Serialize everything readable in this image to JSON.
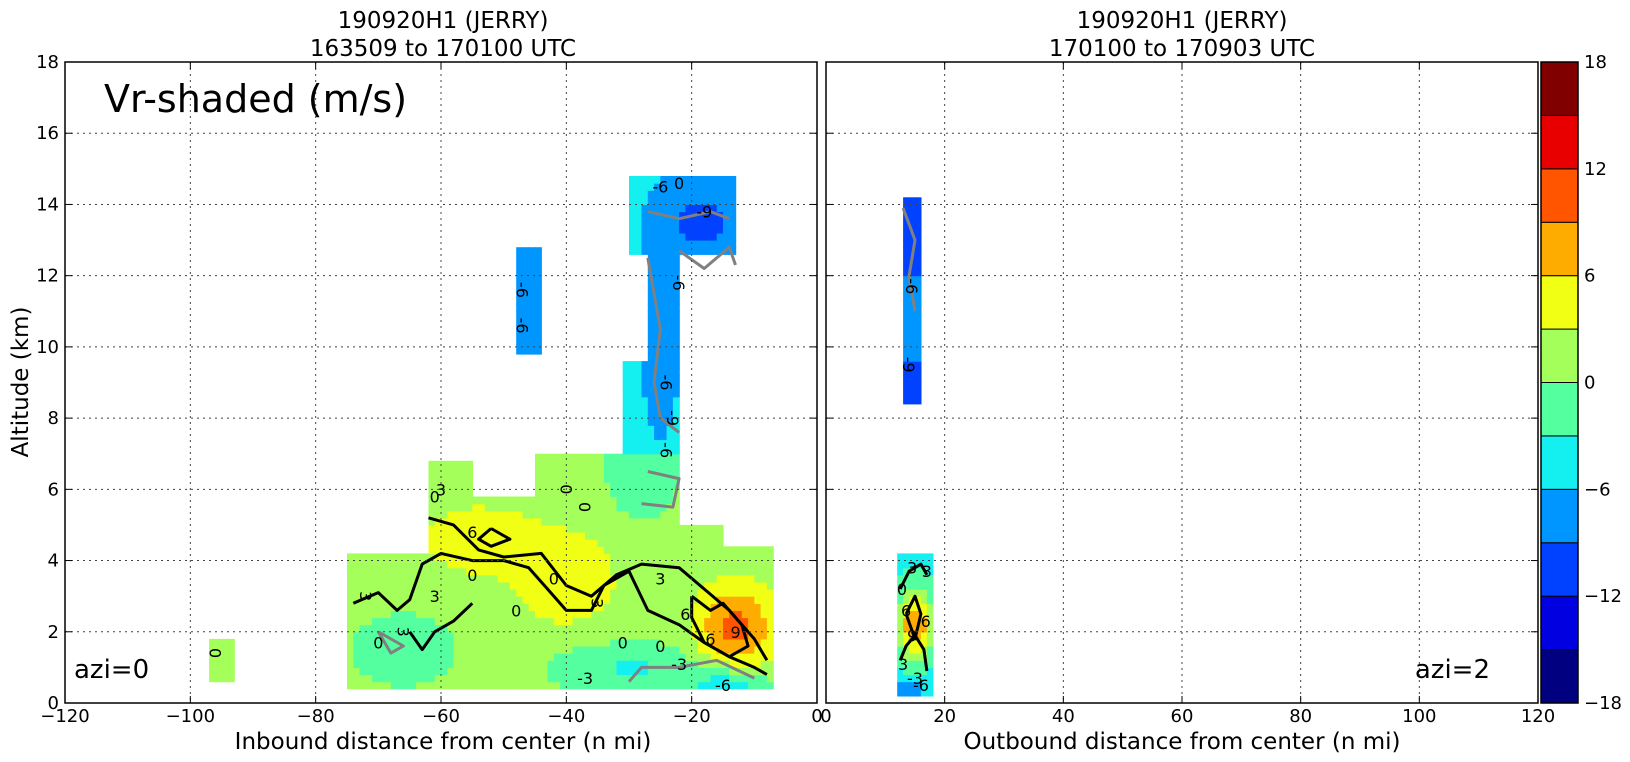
{
  "chart_data": [
    {
      "type": "heatmap",
      "panel": "left",
      "title": "190920H1 (JERRY)",
      "subtitle": "163509 to 170100 UTC",
      "xlabel": "Inbound distance from center (n mi)",
      "ylabel": "Altitude (km)",
      "xlim": [
        -120,
        0
      ],
      "ylim": [
        0,
        18
      ],
      "xticks": [
        -120,
        -100,
        -80,
        -60,
        -40,
        -20,
        0
      ],
      "yticks": [
        0,
        2,
        4,
        6,
        8,
        10,
        12,
        14,
        16,
        18
      ],
      "grid": true,
      "annotations": [
        "Vr-shaded (m/s)",
        "azi=0"
      ],
      "regions": [
        {
          "name": "low-level band",
          "x": [
            -95,
            -7
          ],
          "y": [
            0.5,
            7.0
          ],
          "vr_range": [
            -6,
            6
          ]
        },
        {
          "name": "outflow max",
          "x": [
            -18,
            -9
          ],
          "y": [
            0.8,
            3.0
          ],
          "vr_max": 9
        },
        {
          "name": "inflow upper column",
          "x": [
            -30,
            -13
          ],
          "y": [
            8,
            14.7
          ],
          "vr_min": -12
        },
        {
          "name": "isolated cell",
          "x": [
            -48,
            -44
          ],
          "y": [
            9.7,
            12.7
          ],
          "vr_range": [
            -9,
            -6
          ]
        },
        {
          "name": "isolated cell",
          "x": [
            -97,
            -95
          ],
          "y": [
            0.6,
            1.9
          ],
          "vr_range": [
            -3,
            3
          ]
        }
      ],
      "contour_labels": [
        "0",
        "3",
        "6",
        "-3",
        "-6",
        "-9"
      ]
    },
    {
      "type": "heatmap",
      "panel": "right",
      "title": "190920H1 (JERRY)",
      "subtitle": "170100 to 170903 UTC",
      "xlabel": "Outbound distance from center (n mi)",
      "xlim": [
        0,
        120
      ],
      "ylim": [
        0,
        18
      ],
      "xticks": [
        0,
        20,
        40,
        60,
        80,
        100,
        120
      ],
      "grid": true,
      "annotations": [
        "azi=2"
      ],
      "regions": [
        {
          "name": "upper column",
          "x": [
            13,
            16
          ],
          "y": [
            8.5,
            14.1
          ],
          "vr_range": [
            -12,
            -6
          ]
        },
        {
          "name": "low-level column",
          "x": [
            12,
            17
          ],
          "y": [
            0.3,
            4.2
          ],
          "vr_range": [
            -9,
            9
          ]
        }
      ],
      "contour_labels": [
        "0",
        "3",
        "6",
        "-3",
        "-6",
        "-9"
      ]
    }
  ],
  "colorbar": {
    "levels": [
      -18,
      -15,
      -12,
      -9,
      -6,
      -3,
      0,
      3,
      6,
      9,
      12,
      15,
      18
    ],
    "colors": [
      "#000080",
      "#0000e0",
      "#0042ff",
      "#0096ff",
      "#14f0f0",
      "#54ffa0",
      "#a4ff5a",
      "#f0ff14",
      "#ffac00",
      "#ff5400",
      "#e80000",
      "#800000"
    ],
    "tick_labels": [
      "18",
      "12",
      "6",
      "0",
      "−6",
      "−12",
      "−18"
    ]
  }
}
